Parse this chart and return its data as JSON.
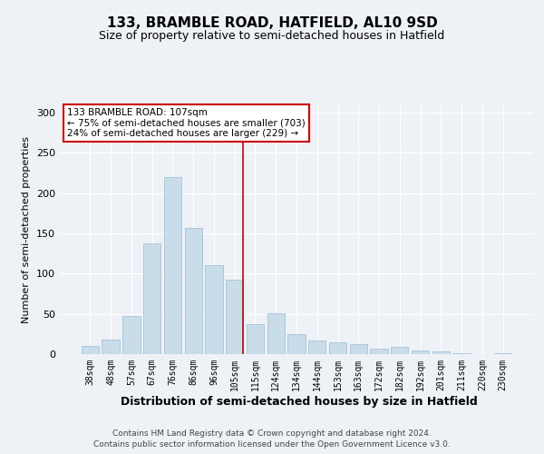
{
  "title": "133, BRAMBLE ROAD, HATFIELD, AL10 9SD",
  "subtitle": "Size of property relative to semi-detached houses in Hatfield",
  "xlabel": "Distribution of semi-detached houses by size in Hatfield",
  "ylabel": "Number of semi-detached properties",
  "footer_line1": "Contains HM Land Registry data © Crown copyright and database right 2024.",
  "footer_line2": "Contains public sector information licensed under the Open Government Licence v3.0.",
  "categories": [
    "38sqm",
    "48sqm",
    "57sqm",
    "67sqm",
    "76sqm",
    "86sqm",
    "96sqm",
    "105sqm",
    "115sqm",
    "124sqm",
    "134sqm",
    "144sqm",
    "153sqm",
    "163sqm",
    "172sqm",
    "182sqm",
    "192sqm",
    "201sqm",
    "211sqm",
    "220sqm",
    "230sqm"
  ],
  "values": [
    10,
    18,
    47,
    138,
    220,
    157,
    110,
    93,
    37,
    51,
    25,
    17,
    15,
    12,
    7,
    9,
    4,
    3,
    1,
    0,
    1
  ],
  "bar_color": "#c9dcea",
  "bar_edge_color": "#9bbbd0",
  "vline_index": 7,
  "annotation_title": "133 BRAMBLE ROAD: 107sqm",
  "annotation_line1": "← 75% of semi-detached houses are smaller (703)",
  "annotation_line2": "24% of semi-detached houses are larger (229) →",
  "annotation_box_facecolor": "#ffffff",
  "annotation_box_edgecolor": "#cc0000",
  "vline_color": "#cc0000",
  "ylim": [
    0,
    310
  ],
  "yticks": [
    0,
    50,
    100,
    150,
    200,
    250,
    300
  ],
  "background_color": "#eef2f7",
  "grid_color": "#ffffff",
  "title_fontsize": 11,
  "subtitle_fontsize": 9,
  "xlabel_fontsize": 9,
  "ylabel_fontsize": 8,
  "tick_fontsize": 7,
  "annotation_fontsize": 7.5,
  "footer_fontsize": 6.5
}
